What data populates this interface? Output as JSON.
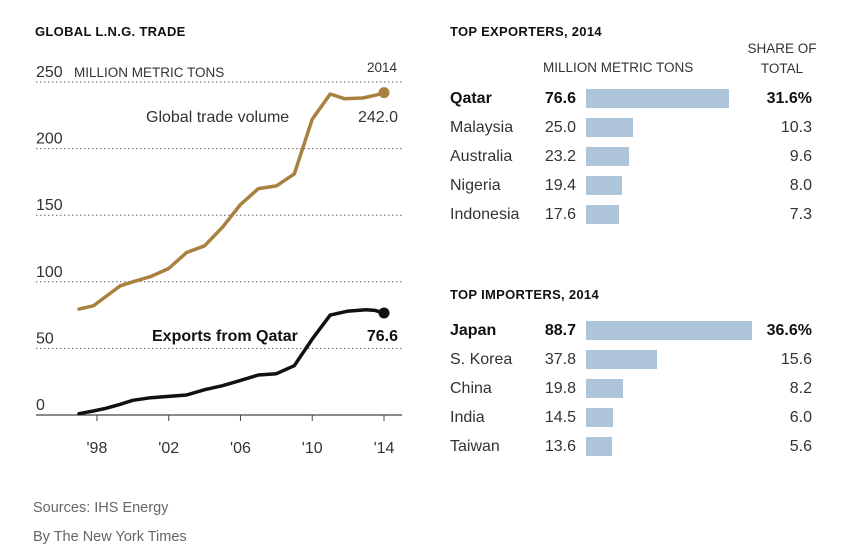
{
  "chart_data": [
    {
      "type": "line",
      "title": "GLOBAL L.N.G. TRADE",
      "ylabel": "MILLION METRIC TONS",
      "ylim": [
        0,
        250
      ],
      "yticks": [
        0,
        50,
        100,
        150,
        200,
        250
      ],
      "xtick_labels": [
        "'98",
        "'02",
        "'06",
        "'10",
        "'14"
      ],
      "xticks": [
        1998,
        2002,
        2006,
        2010,
        2014
      ],
      "end_year_label": "2014",
      "grid": true,
      "series": [
        {
          "name": "Global trade volume",
          "color": "#a9813f",
          "end_value_label": "242.0",
          "points": [
            [
              1997,
              79.5
            ],
            [
              1997.8,
              82
            ],
            [
              1998.5,
              89
            ],
            [
              1999.3,
              97
            ],
            [
              2000,
              100
            ],
            [
              2001,
              104
            ],
            [
              2002,
              110
            ],
            [
              2003,
              122
            ],
            [
              2004,
              127
            ],
            [
              2005,
              141
            ],
            [
              2006,
              158
            ],
            [
              2007,
              170
            ],
            [
              2008,
              172
            ],
            [
              2009,
              181
            ],
            [
              2010,
              222
            ],
            [
              2011,
              241
            ],
            [
              2011.8,
              237.5
            ],
            [
              2012.8,
              238
            ],
            [
              2013.5,
              240
            ],
            [
              2014,
              242.0
            ]
          ]
        },
        {
          "name": "Exports from Qatar",
          "color": "#111111",
          "end_value_label": "76.6",
          "points": [
            [
              1997,
              1
            ],
            [
              1997.8,
              3
            ],
            [
              1998.5,
              5
            ],
            [
              1999.3,
              8
            ],
            [
              2000,
              11
            ],
            [
              2001,
              13
            ],
            [
              2002,
              14
            ],
            [
              2003,
              15
            ],
            [
              2004,
              19
            ],
            [
              2005,
              22
            ],
            [
              2006,
              26
            ],
            [
              2007,
              30
            ],
            [
              2008,
              31
            ],
            [
              2009,
              37
            ],
            [
              2010,
              57
            ],
            [
              2011,
              75
            ],
            [
              2012,
              78
            ],
            [
              2013,
              79
            ],
            [
              2013.5,
              78.5
            ],
            [
              2014,
              76.6
            ]
          ]
        }
      ]
    },
    {
      "type": "bar",
      "title": "TOP EXPORTERS, 2014",
      "value_label": "MILLION METRIC TONS",
      "share_label": [
        "SHARE OF",
        "TOTAL"
      ],
      "categories": [
        "Qatar",
        "Malaysia",
        "Australia",
        "Nigeria",
        "Indonesia"
      ],
      "values": [
        76.6,
        25.0,
        23.2,
        19.4,
        17.6
      ],
      "value_labels": [
        "76.6",
        "25.0",
        "23.2",
        "19.4",
        "17.6"
      ],
      "shares": [
        "31.6%",
        "10.3",
        "9.6",
        "8.0",
        "7.3"
      ]
    },
    {
      "type": "bar",
      "title": "TOP IMPORTERS, 2014",
      "categories": [
        "Japan",
        "S. Korea",
        "China",
        "India",
        "Taiwan"
      ],
      "values": [
        88.7,
        37.8,
        19.8,
        14.5,
        13.6
      ],
      "value_labels": [
        "88.7",
        "37.8",
        "19.8",
        "14.5",
        "13.6"
      ],
      "shares": [
        "36.6%",
        "15.6",
        "8.2",
        "6.0",
        "5.6"
      ]
    }
  ],
  "footer": {
    "source": "Sources: IHS Energy",
    "credit": "By The New York Times"
  },
  "colors": {
    "bar": "#adc4d9",
    "global": "#a9813f",
    "qatar": "#111111"
  }
}
